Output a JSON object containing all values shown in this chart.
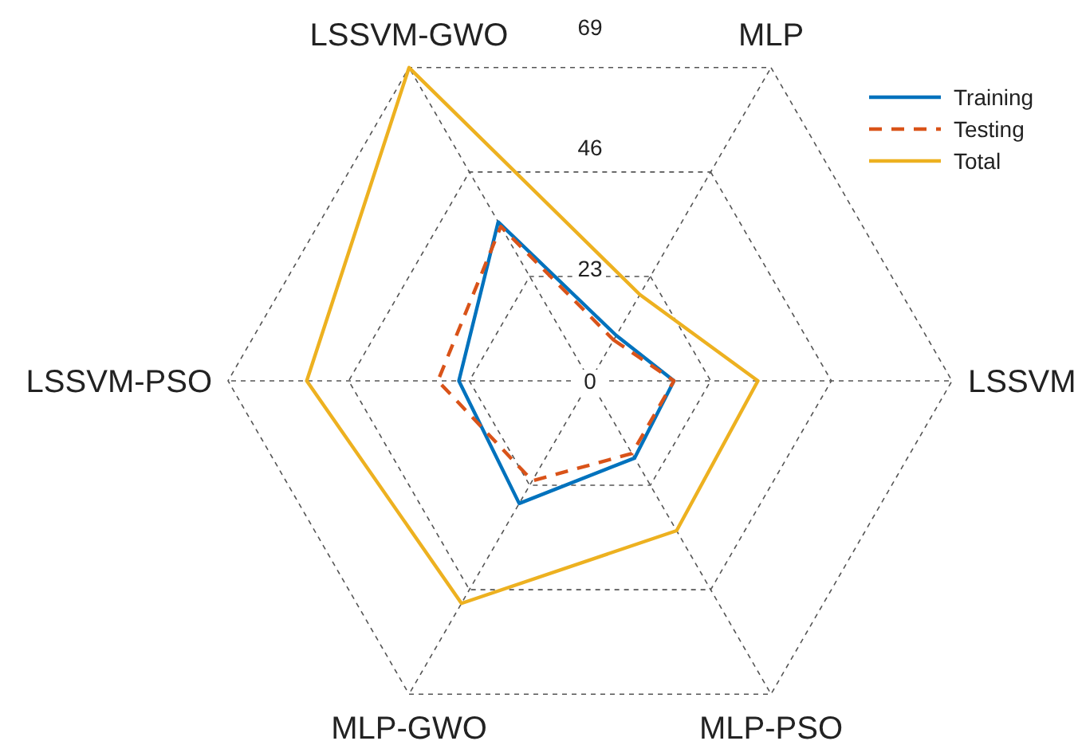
{
  "chart_data": {
    "type": "radar",
    "categories": [
      "MLP",
      "LSSVM",
      "MLP-PSO",
      "MLP-GWO",
      "LSSVM-PSO",
      "LSSVM-GWO"
    ],
    "series": [
      {
        "name": "Training",
        "color": "#0072bd",
        "line_style": "solid",
        "values": [
          10,
          16,
          17,
          27,
          25,
          35
        ]
      },
      {
        "name": "Testing",
        "color": "#d95319",
        "line_style": "dashed",
        "values": [
          9,
          16,
          16,
          22,
          29,
          34
        ]
      },
      {
        "name": "Total",
        "color": "#edb120",
        "line_style": "solid",
        "values": [
          19,
          32,
          33,
          49,
          54,
          69
        ]
      }
    ],
    "ylim": [
      0,
      69
    ],
    "yticks": [
      0,
      23,
      46,
      69
    ],
    "grid": true,
    "legend": "top right",
    "marker": "none"
  }
}
